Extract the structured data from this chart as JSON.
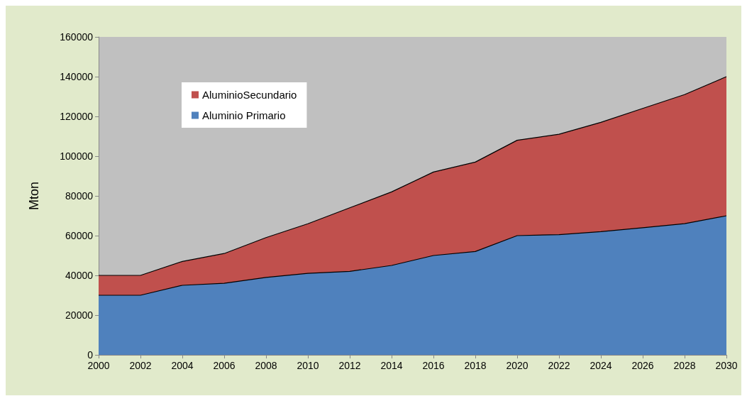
{
  "chart_data": {
    "type": "area",
    "stacked": true,
    "ylabel": "Mton",
    "x": [
      2000,
      2002,
      2004,
      2006,
      2008,
      2010,
      2012,
      2014,
      2016,
      2018,
      2020,
      2022,
      2024,
      2026,
      2028,
      2030
    ],
    "xlim": [
      2000,
      2030
    ],
    "xticks": [
      2000,
      2002,
      2004,
      2006,
      2008,
      2010,
      2012,
      2014,
      2016,
      2018,
      2020,
      2022,
      2024,
      2026,
      2028,
      2030
    ],
    "ylim": [
      0,
      160000
    ],
    "yticks": [
      0,
      20000,
      40000,
      60000,
      80000,
      100000,
      120000,
      140000,
      160000
    ],
    "grid": false,
    "legend": "top left",
    "series": [
      {
        "name": "Aluminio Primario",
        "color": "#4f81bd",
        "values": [
          30000,
          30000,
          35000,
          36000,
          39000,
          41000,
          42000,
          45000,
          50000,
          52000,
          60000,
          60500,
          62000,
          64000,
          66000,
          70000
        ]
      },
      {
        "name": "AluminioSecundario",
        "color": "#c0504d",
        "values": [
          10000,
          10000,
          12000,
          15000,
          20000,
          25000,
          32000,
          37000,
          42000,
          45000,
          48000,
          50500,
          55000,
          60000,
          65000,
          70000
        ]
      }
    ]
  }
}
